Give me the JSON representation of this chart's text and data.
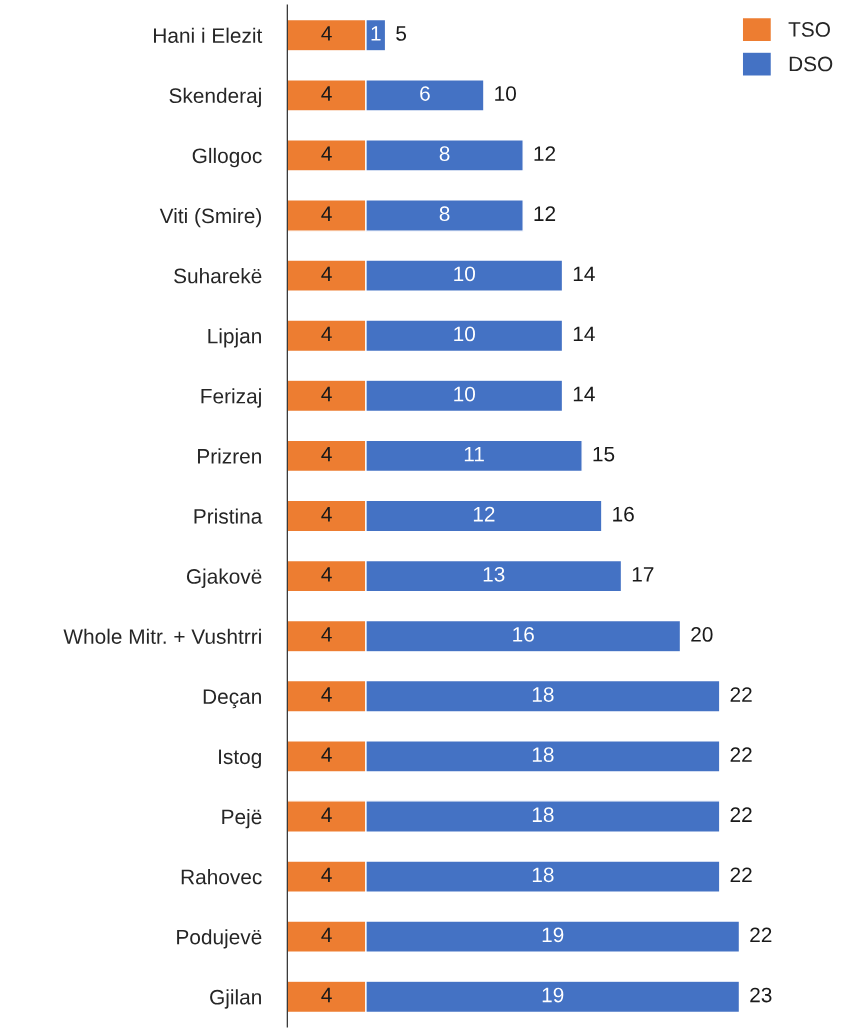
{
  "chart_data": {
    "type": "bar",
    "orientation": "horizontal",
    "stacked": true,
    "data_labels": true,
    "legend": "top right",
    "grid": false,
    "categories": [
      "Hani i Elezit",
      "Skenderaj",
      "Gllogoc",
      "Viti (Smire)",
      "Suharekë",
      "Lipjan",
      "Ferizaj",
      "Prizren",
      "Pristina",
      "Gjakovë",
      "Whole Mitr. + Vushtrri",
      "Deçan",
      "Istog",
      "Pejë",
      "Rahovec",
      "Podujevë",
      "Gjilan"
    ],
    "series": [
      {
        "name": "TSO",
        "color": "#ed7d31",
        "values": [
          4,
          4,
          4,
          4,
          4,
          4,
          4,
          4,
          4,
          4,
          4,
          4,
          4,
          4,
          4,
          4,
          4
        ]
      },
      {
        "name": "DSO",
        "color": "#4472c4",
        "values": [
          1,
          6,
          8,
          8,
          10,
          10,
          10,
          11,
          12,
          13,
          16,
          18,
          18,
          18,
          18,
          19,
          19
        ]
      }
    ],
    "totals": [
      "5",
      "10",
      "12",
      "12",
      "14",
      "14",
      "14",
      "15",
      "16",
      "17",
      "20",
      "22",
      "22",
      "22",
      "22",
      "22",
      "23"
    ]
  }
}
